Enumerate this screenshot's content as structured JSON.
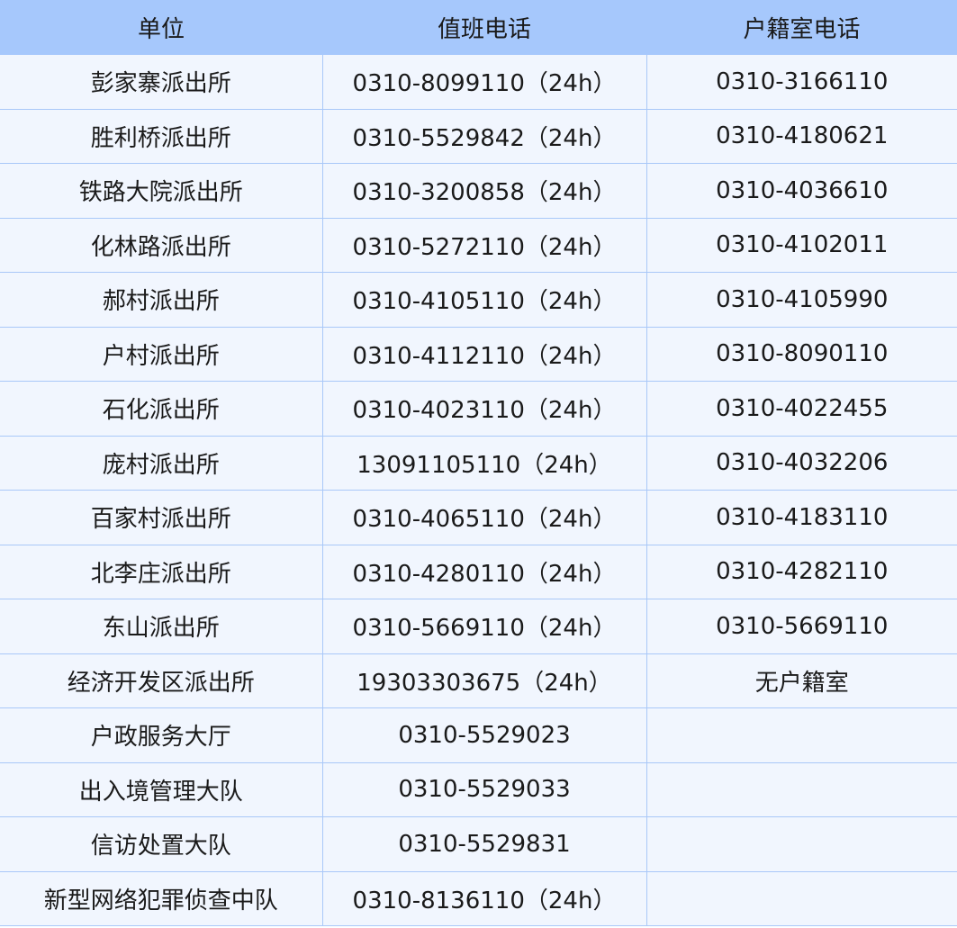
{
  "table": {
    "headers": [
      "单位",
      "值班电话",
      "户籍室电话"
    ],
    "rows": [
      [
        "彭家寨派出所",
        "0310-8099110（24h）",
        "0310-3166110"
      ],
      [
        "胜利桥派出所",
        "0310-5529842（24h）",
        "0310-4180621"
      ],
      [
        "铁路大院派出所",
        "0310-3200858（24h）",
        "0310-4036610"
      ],
      [
        "化林路派出所",
        "0310-5272110（24h）",
        "0310-4102011"
      ],
      [
        "郝村派出所",
        "0310-4105110（24h）",
        "0310-4105990"
      ],
      [
        "户村派出所",
        "0310-4112110（24h）",
        "0310-8090110"
      ],
      [
        "石化派出所",
        "0310-4023110（24h）",
        "0310-4022455"
      ],
      [
        "庞村派出所",
        "13091105110（24h）",
        "0310-4032206"
      ],
      [
        "百家村派出所",
        "0310-4065110（24h）",
        "0310-4183110"
      ],
      [
        "北李庄派出所",
        "0310-4280110（24h）",
        "0310-4282110"
      ],
      [
        "东山派出所",
        "0310-5669110（24h）",
        "0310-5669110"
      ],
      [
        "经济开发区派出所",
        "19303303675（24h）",
        "无户籍室"
      ],
      [
        "户政服务大厅",
        "0310-5529023",
        ""
      ],
      [
        "出入境管理大队",
        "0310-5529033",
        ""
      ],
      [
        "信访处置大队",
        "0310-5529831",
        ""
      ],
      [
        "新型网络犯罪侦查中队",
        "0310-8136110（24h）",
        ""
      ]
    ]
  },
  "colors": {
    "header_bg": "#a6c8fc",
    "row_bg": "#f1f6fe",
    "border": "#a9c8f8"
  }
}
